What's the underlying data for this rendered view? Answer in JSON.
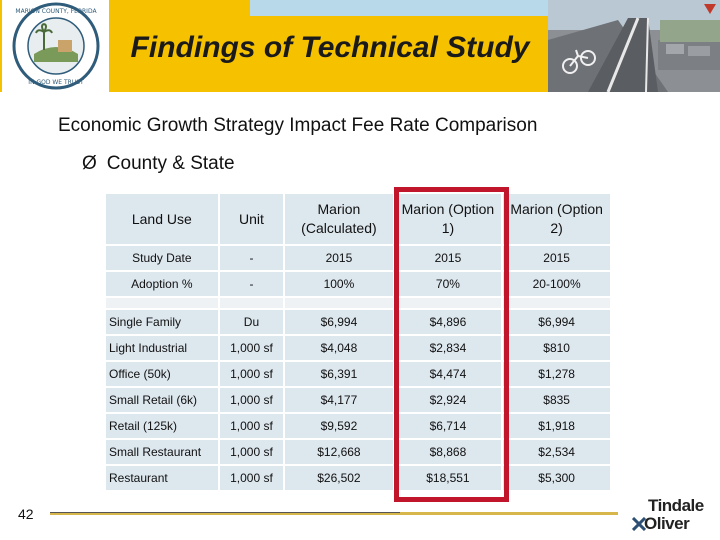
{
  "header": {
    "title": "Findings of Technical Study",
    "logo_text_top": "MARION COUNTY, FLORIDA",
    "logo_text_bottom": "IN GOD WE TRUST"
  },
  "subtitle": "Economic Growth Strategy Impact Fee Rate Comparison",
  "bullet": {
    "arrow": "Ø",
    "text": "County & State"
  },
  "table": {
    "headers": [
      "Land Use",
      "Unit",
      "Marion (Calculated)",
      "Marion (Option 1)",
      "Marion (Option 2)"
    ],
    "info_rows": [
      {
        "land_use": "Study Date",
        "unit": "-",
        "calculated": "2015",
        "option1": "2015",
        "option2": "2015"
      },
      {
        "land_use": "Adoption %",
        "unit": "-",
        "calculated": "100%",
        "option1": "70%",
        "option2": "20-100%"
      }
    ],
    "rows": [
      {
        "land_use": "Single Family",
        "unit": "Du",
        "calculated": "$6,994",
        "option1": "$4,896",
        "option2": "$6,994"
      },
      {
        "land_use": "Light Industrial",
        "unit": "1,000 sf",
        "calculated": "$4,048",
        "option1": "$2,834",
        "option2": "$810"
      },
      {
        "land_use": "Office (50k)",
        "unit": "1,000 sf",
        "calculated": "$6,391",
        "option1": "$4,474",
        "option2": "$1,278"
      },
      {
        "land_use": "Small Retail (6k)",
        "unit": "1,000 sf",
        "calculated": "$4,177",
        "option1": "$2,924",
        "option2": "$835"
      },
      {
        "land_use": "Retail (125k)",
        "unit": "1,000 sf",
        "calculated": "$9,592",
        "option1": "$6,714",
        "option2": "$1,918"
      },
      {
        "land_use": "Small Restaurant",
        "unit": "1,000 sf",
        "calculated": "$12,668",
        "option1": "$8,868",
        "option2": "$2,534"
      },
      {
        "land_use": "Restaurant",
        "unit": "1,000 sf",
        "calculated": "$26,502",
        "option1": "$18,551",
        "option2": "$5,300"
      }
    ]
  },
  "footer": {
    "page_number": "42",
    "brand_line1": "Tindale",
    "brand_line2": "Oliver"
  },
  "colors": {
    "title_band": "#f6c200",
    "table_cell": "#dde7ee",
    "highlight": "#c0152a",
    "footer_line": "#d7b64c"
  }
}
